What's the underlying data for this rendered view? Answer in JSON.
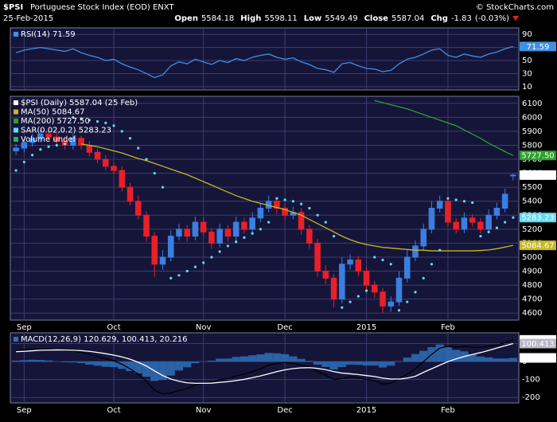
{
  "header": {
    "symbol": "$PSI",
    "name": "Portuguese Stock Index (EOD) ENXT",
    "date": "25-Feb-2015",
    "source": "© StockCharts.com",
    "quote": [
      {
        "label": "Open",
        "value": 5584.18
      },
      {
        "label": "High",
        "value": 5598.11
      },
      {
        "label": "Low",
        "value": 5549.49
      },
      {
        "label": "Close",
        "value": 5587.04
      },
      {
        "label": "Chg",
        "value": -1.83
      }
    ],
    "change_pct": "(-0.03%)"
  },
  "chart_data": [
    {
      "type": "line",
      "ylim": [
        5,
        100
      ],
      "yticks": [
        10,
        30,
        50,
        70,
        90
      ],
      "grid": true,
      "series": [
        {
          "name": "RSI(14) 71.59",
          "type": "line",
          "color": "#3f8fe6",
          "end_label": "71.59",
          "values": [
            62,
            66,
            68,
            70,
            68,
            66,
            64,
            68,
            62,
            58,
            55,
            50,
            52,
            45,
            40,
            36,
            30,
            24,
            28,
            42,
            48,
            45,
            52,
            48,
            44,
            50,
            47,
            53,
            50,
            55,
            58,
            60,
            55,
            52,
            54,
            48,
            44,
            38,
            36,
            32,
            45,
            47,
            42,
            38,
            37,
            33,
            35,
            45,
            52,
            55,
            60,
            66,
            68,
            58,
            55,
            60,
            57,
            55,
            60,
            63,
            68,
            71.59
          ]
        }
      ]
    },
    {
      "type": "candlestick",
      "ylim": [
        4550,
        6150
      ],
      "grid": true,
      "yticks": [
        4600,
        4700,
        4800,
        4900,
        5000,
        5100,
        5200,
        5300,
        5400,
        5500,
        5600,
        5700,
        5800,
        5900,
        6000,
        6100
      ],
      "categories": [
        null,
        "Sep",
        null,
        null,
        null,
        null,
        null,
        null,
        null,
        null,
        null,
        null,
        "Oct",
        null,
        null,
        null,
        null,
        null,
        null,
        null,
        null,
        null,
        null,
        "Nov",
        null,
        null,
        null,
        null,
        null,
        null,
        null,
        null,
        null,
        "Dec",
        null,
        null,
        null,
        null,
        null,
        null,
        null,
        null,
        null,
        "2015",
        null,
        null,
        null,
        null,
        null,
        null,
        null,
        null,
        null,
        "Feb",
        null,
        null,
        null,
        null,
        null,
        null,
        null,
        null
      ],
      "series": [
        {
          "name": "$PSI (Daily) 5587.04 (25 Feb)",
          "type": "candlestick",
          "color": "#ffffff",
          "up_color": "#3c7ee0",
          "down_color": "#e8202a",
          "end_label": "5587.04",
          "open": [
            5760,
            5780,
            5820,
            5850,
            5880,
            5860,
            5830,
            5800,
            5850,
            5800,
            5750,
            5700,
            5650,
            5620,
            5500,
            5400,
            5300,
            5150,
            4950,
            5000,
            5150,
            5200,
            5150,
            5250,
            5180,
            5100,
            5200,
            5150,
            5250,
            5200,
            5280,
            5350,
            5400,
            5350,
            5300,
            5320,
            5200,
            5100,
            4900,
            4850,
            4700,
            4950,
            4980,
            4900,
            4800,
            4750,
            4650,
            4680,
            4850,
            5000,
            5080,
            5200,
            5350,
            5400,
            5250,
            5200,
            5280,
            5250,
            5200,
            5300,
            5350,
            5584.18
          ],
          "high": [
            5810,
            5850,
            5880,
            5910,
            5905,
            5885,
            5860,
            5880,
            5870,
            5830,
            5780,
            5730,
            5680,
            5650,
            5530,
            5440,
            5330,
            5180,
            5050,
            5190,
            5240,
            5230,
            5290,
            5280,
            5210,
            5240,
            5230,
            5290,
            5280,
            5320,
            5390,
            5440,
            5430,
            5380,
            5360,
            5350,
            5230,
            5130,
            4940,
            4880,
            5000,
            5020,
            5010,
            4930,
            4830,
            4780,
            4720,
            4900,
            5050,
            5120,
            5240,
            5400,
            5440,
            5430,
            5280,
            5320,
            5310,
            5280,
            5340,
            5390,
            5490,
            5598.11
          ],
          "low": [
            5730,
            5750,
            5790,
            5820,
            5830,
            5800,
            5770,
            5770,
            5770,
            5720,
            5670,
            5620,
            5590,
            5470,
            5370,
            5270,
            5110,
            4860,
            4910,
            4970,
            5120,
            5110,
            5120,
            5150,
            5060,
            5070,
            5110,
            5120,
            5170,
            5170,
            5250,
            5320,
            5310,
            5270,
            5270,
            5160,
            5060,
            4860,
            4810,
            4640,
            4670,
            4910,
            4860,
            4760,
            4710,
            4600,
            4610,
            4650,
            4820,
            4970,
            5050,
            5170,
            5320,
            5220,
            5170,
            5170,
            5220,
            5170,
            5170,
            5270,
            5320,
            5549.49
          ],
          "close": [
            5780,
            5820,
            5850,
            5880,
            5860,
            5830,
            5800,
            5850,
            5800,
            5750,
            5700,
            5650,
            5620,
            5500,
            5400,
            5300,
            5150,
            4950,
            5000,
            5150,
            5200,
            5150,
            5250,
            5180,
            5100,
            5200,
            5150,
            5250,
            5200,
            5280,
            5350,
            5400,
            5350,
            5300,
            5320,
            5200,
            5100,
            4900,
            4850,
            4700,
            4950,
            4980,
            4900,
            4800,
            4750,
            4650,
            4680,
            4850,
            5000,
            5080,
            5200,
            5350,
            5400,
            5250,
            5200,
            5280,
            5250,
            5200,
            5300,
            5350,
            5450,
            5587.04
          ]
        },
        {
          "name": "MA(50) 5084.67",
          "type": "line",
          "color": "#c8b820",
          "end_label": "5084.67",
          "values": [
            null,
            null,
            null,
            null,
            null,
            null,
            null,
            null,
            5810,
            5800,
            5790,
            5775,
            5760,
            5745,
            5725,
            5705,
            5690,
            5670,
            5650,
            5630,
            5610,
            5590,
            5565,
            5540,
            5515,
            5490,
            5465,
            5440,
            5420,
            5400,
            5385,
            5370,
            5355,
            5340,
            5320,
            5300,
            5270,
            5240,
            5210,
            5180,
            5150,
            5125,
            5105,
            5090,
            5080,
            5070,
            5065,
            5060,
            5055,
            5050,
            5050,
            5045,
            5045,
            5045,
            5045,
            5045,
            5045,
            5048,
            5052,
            5060,
            5072,
            5084.67
          ]
        },
        {
          "name": "MA(200) 5727.50",
          "type": "line",
          "color": "#2da02d",
          "end_label": "5727.50",
          "values": [
            null,
            null,
            null,
            null,
            null,
            null,
            null,
            null,
            null,
            null,
            null,
            null,
            null,
            null,
            null,
            null,
            null,
            null,
            null,
            null,
            null,
            null,
            null,
            null,
            null,
            null,
            null,
            null,
            null,
            null,
            null,
            null,
            null,
            null,
            null,
            null,
            null,
            null,
            null,
            null,
            null,
            null,
            null,
            null,
            6120,
            6105,
            6090,
            6075,
            6060,
            6040,
            6020,
            6000,
            5980,
            5960,
            5940,
            5910,
            5880,
            5850,
            5815,
            5785,
            5755,
            5727.5
          ]
        },
        {
          "name": "SAR(0.02,0.2) 5283.23",
          "type": "scatter",
          "color": "#66d9ef",
          "end_label": "5283.23",
          "values": [
            5620,
            5680,
            5730,
            5770,
            5790,
            5800,
            5810,
            6000,
            5990,
            5980,
            5970,
            5960,
            5940,
            5900,
            5850,
            5780,
            5700,
            5600,
            5500,
            4850,
            4870,
            4900,
            4930,
            4960,
            5000,
            5040,
            5080,
            5110,
            5140,
            5170,
            5200,
            5250,
            5420,
            5410,
            5400,
            5380,
            5350,
            5300,
            5250,
            5150,
            4640,
            4680,
            4720,
            4760,
            5000,
            4980,
            4950,
            4620,
            4680,
            4750,
            4850,
            4950,
            5050,
            5420,
            5410,
            5400,
            5390,
            5150,
            5180,
            5210,
            5250,
            5283.23
          ]
        },
        {
          "name": "Volume undef",
          "type": "volume",
          "color": "#2db34a"
        }
      ]
    },
    {
      "type": "macd",
      "ylim": [
        -230,
        160
      ],
      "yticks": [
        -200,
        -100,
        0,
        100
      ],
      "grid": true,
      "legend": "MACD(12,26,9) 120.629, 100.413, 20.216",
      "series": [
        {
          "type": "bar",
          "color": "#2f6fb8",
          "box_color": "#ffffff",
          "end_label": "20.216",
          "values": [
            5,
            8,
            10,
            9,
            6,
            0,
            -4,
            -5,
            -9,
            -17,
            -23,
            -29,
            -31,
            -41,
            -53,
            -66,
            -85,
            -108,
            -102,
            -78,
            -50,
            -32,
            -9,
            1,
            5,
            16,
            17,
            26,
            29,
            35,
            40,
            48,
            46,
            41,
            29,
            15,
            4,
            -17,
            -30,
            -44,
            -31,
            -17,
            -18,
            -22,
            -22,
            -33,
            -23,
            2,
            22,
            42,
            60,
            80,
            95,
            85,
            65,
            57,
            40,
            28,
            23,
            17,
            17,
            20.216
          ]
        },
        {
          "type": "line",
          "color": "#000000",
          "box_color": "#ffffff",
          "end_label": "120.629",
          "values": [
            60,
            65,
            70,
            72,
            70,
            65,
            60,
            58,
            52,
            40,
            28,
            15,
            5,
            -15,
            -40,
            -70,
            -110,
            -160,
            -180,
            -175,
            -160,
            -150,
            -130,
            -120,
            -115,
            -100,
            -95,
            -80,
            -70,
            -55,
            -40,
            -20,
            -10,
            -5,
            -10,
            -20,
            -30,
            -55,
            -75,
            -100,
            -95,
            -85,
            -90,
            -100,
            -105,
            -125,
            -120,
            -95,
            -70,
            -40,
            0,
            40,
            75,
            85,
            80,
            85,
            80,
            78,
            85,
            92,
            105,
            120.629
          ]
        },
        {
          "type": "line",
          "color": "#ffffff",
          "box_color": "#b8b8c8",
          "end_label": "100.413",
          "values": [
            55,
            57,
            60,
            63,
            64,
            65,
            64,
            63,
            61,
            57,
            51,
            44,
            36,
            26,
            13,
            -4,
            -25,
            -52,
            -78,
            -97,
            -110,
            -118,
            -121,
            -121,
            -120,
            -116,
            -112,
            -106,
            -99,
            -90,
            -80,
            -68,
            -56,
            -46,
            -39,
            -35,
            -34,
            -38,
            -45,
            -56,
            -64,
            -68,
            -72,
            -78,
            -83,
            -92,
            -97,
            -97,
            -92,
            -82,
            -60,
            -40,
            -20,
            0,
            15,
            28,
            40,
            50,
            62,
            75,
            88,
            100.413
          ]
        }
      ]
    }
  ]
}
